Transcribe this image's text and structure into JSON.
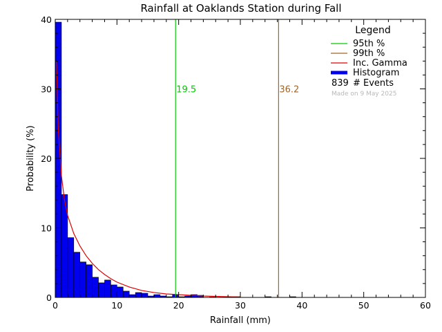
{
  "chart_data": {
    "type": "bar",
    "title": "Rainfall at Oaklands Station during Fall",
    "xlabel": "Rainfall (mm)",
    "ylabel": "Probability (%)",
    "xlim": [
      0,
      60
    ],
    "ylim": [
      0,
      40
    ],
    "xticks": [
      "0",
      "10",
      "20",
      "30",
      "40",
      "50",
      "60"
    ],
    "yticks": [
      "0",
      "10",
      "20",
      "30",
      "40"
    ],
    "bin_width": 1,
    "bin_starts": [
      0,
      1,
      2,
      3,
      4,
      5,
      6,
      7,
      8,
      9,
      10,
      11,
      12,
      13,
      14,
      15,
      16,
      17,
      18,
      19,
      20,
      21,
      22,
      23,
      24,
      25,
      26,
      27,
      28,
      29,
      30,
      31,
      32,
      33,
      34,
      35,
      36,
      37,
      38,
      39,
      40,
      41,
      42,
      43,
      44,
      45,
      46,
      47,
      48,
      49,
      50,
      51,
      52,
      53,
      54,
      55,
      56,
      57,
      58,
      59
    ],
    "histogram": [
      39.6,
      14.8,
      8.6,
      6.5,
      5.1,
      4.7,
      2.9,
      2.1,
      2.5,
      1.8,
      1.5,
      0.9,
      0.4,
      0.7,
      0.6,
      0.2,
      0.4,
      0.2,
      0.1,
      0.4,
      0.1,
      0.2,
      0.4,
      0.3,
      0,
      0.05,
      0,
      0,
      0,
      0.1,
      0,
      0,
      0,
      0,
      0.1,
      0,
      0,
      0,
      0.1,
      0,
      0,
      0,
      0,
      0,
      0,
      0,
      0,
      0,
      0,
      0,
      0,
      0,
      0,
      0,
      0,
      0,
      0,
      0,
      0,
      0
    ],
    "gamma_curve": {
      "x": [
        0.2,
        0.5,
        1,
        1.5,
        2,
        3,
        4,
        5,
        6,
        7,
        8,
        9,
        10,
        12,
        14,
        16,
        18,
        20,
        22,
        24,
        26,
        28,
        30
      ],
      "y": [
        34,
        24,
        17.5,
        14,
        11.8,
        9.2,
        7.4,
        6,
        4.9,
        4,
        3.3,
        2.7,
        2.2,
        1.5,
        1.0,
        0.7,
        0.5,
        0.4,
        0.3,
        0.2,
        0.15,
        0.1,
        0.07
      ]
    },
    "percentile_95": 19.5,
    "percentile_99": 36.2,
    "percentile_95_label": "19.5",
    "percentile_99_label": "36.2",
    "events": "839",
    "legend": {
      "title": "Legend",
      "placement": "top-right",
      "items": [
        {
          "label": "95th %",
          "color": "#00cc00"
        },
        {
          "label": "99th %",
          "color": "#a0642a"
        },
        {
          "label": "Inc. Gamma",
          "color": "#dd0000"
        },
        {
          "label": "Histogram",
          "color": "#0000ee"
        }
      ],
      "events_label": "# Events"
    },
    "made_on": "Made on 9 May 2025",
    "colors": {
      "histogram": "#0000ee",
      "gamma": "#dd0000",
      "p95": "#00cc00",
      "p99": "#a0642a",
      "made_on": "#b8b8b8"
    },
    "grid": false
  }
}
